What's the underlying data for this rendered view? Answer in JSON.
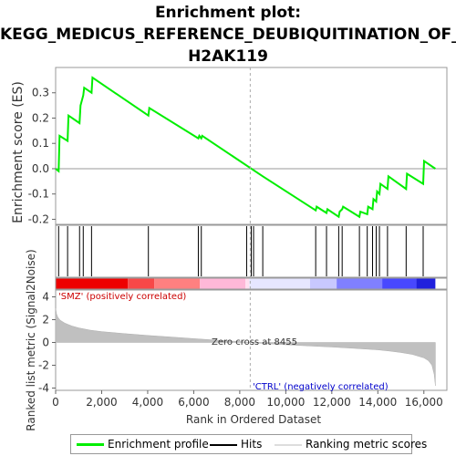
{
  "title_lines": [
    "Enrichment plot:",
    "KEGG_MEDICUS_REFERENCE_DEUBIQUITINATION_OF_",
    "H2AK119"
  ],
  "legend": {
    "items": [
      {
        "label": "Enrichment profile",
        "color": "#00ee00"
      },
      {
        "label": "Hits",
        "color": "#000000"
      },
      {
        "label": "Ranking metric scores",
        "color": "#cccccc"
      }
    ]
  },
  "chart_data": [
    {
      "type": "line",
      "ylabel": "Enrichment score (ES)",
      "xlim": [
        0,
        17000
      ],
      "ylim": [
        -0.22,
        0.4
      ],
      "yticks": [
        -0.2,
        -0.1,
        0.0,
        0.1,
        0.2,
        0.3
      ],
      "ytick_labels": [
        "-0.2",
        "-0.1",
        "0.0",
        "0.1",
        "0.2",
        "0.3"
      ],
      "series": [
        {
          "color": "#00ee00",
          "x": [
            0,
            130,
            170,
            520,
            560,
            1040,
            1080,
            1200,
            1240,
            1560,
            1600,
            4030,
            4070,
            6200,
            6240,
            6330,
            6370,
            9000,
            11300,
            11340,
            11770,
            11810,
            12300,
            12340,
            12450,
            12490,
            13200,
            13240,
            13540,
            13580,
            13770,
            13810,
            13930,
            13970,
            14070,
            14110,
            14420,
            14460,
            15230,
            15270,
            15970,
            16010,
            16500
          ],
          "y": [
            0.0,
            -0.01,
            0.13,
            0.11,
            0.21,
            0.18,
            0.25,
            0.29,
            0.32,
            0.3,
            0.36,
            0.21,
            0.24,
            0.12,
            0.13,
            0.12,
            0.13,
            -0.03,
            -0.165,
            -0.15,
            -0.175,
            -0.16,
            -0.19,
            -0.17,
            -0.16,
            -0.15,
            -0.19,
            -0.17,
            -0.18,
            -0.15,
            -0.16,
            -0.12,
            -0.13,
            -0.09,
            -0.1,
            -0.06,
            -0.08,
            -0.03,
            -0.08,
            -0.02,
            -0.06,
            0.03,
            0.0
          ]
        }
      ]
    },
    {
      "type": "scatter",
      "name": "Hits",
      "x": [
        130,
        520,
        1040,
        1200,
        1560,
        4030,
        6200,
        6330,
        8300,
        8500,
        8600,
        9000,
        11300,
        11770,
        12300,
        12450,
        13200,
        13540,
        13770,
        13930,
        14070,
        14420,
        15230,
        15970
      ]
    },
    {
      "type": "area",
      "ylabel": "Ranked list metric (Signal2Noise)",
      "xlabel": "Rank in Ordered Dataset",
      "xlim": [
        0,
        17000
      ],
      "ylim": [
        -4.2,
        4.6
      ],
      "yticks": [
        -4,
        -2,
        0,
        2,
        4
      ],
      "ytick_labels": [
        "-4",
        "-2",
        "0",
        "2",
        "4"
      ],
      "xticks": [
        0,
        2000,
        4000,
        6000,
        8000,
        10000,
        12000,
        14000,
        16000
      ],
      "xtick_labels": [
        "0",
        "2,000",
        "4,000",
        "6,000",
        "8,000",
        "10,000",
        "12,000",
        "14,000",
        "16,000"
      ],
      "x": [
        0,
        40,
        100,
        200,
        400,
        700,
        1000,
        1500,
        2000,
        3000,
        4000,
        5000,
        6000,
        7000,
        8000,
        8455,
        9000,
        10000,
        11000,
        12000,
        13000,
        14000,
        14500,
        15000,
        15500,
        16000,
        16200,
        16350,
        16450,
        16500
      ],
      "values": [
        3.0,
        2.5,
        2.2,
        1.95,
        1.7,
        1.45,
        1.28,
        1.08,
        0.95,
        0.78,
        0.62,
        0.48,
        0.34,
        0.2,
        0.08,
        0.0,
        -0.08,
        -0.2,
        -0.3,
        -0.4,
        -0.52,
        -0.65,
        -0.75,
        -0.88,
        -1.05,
        -1.35,
        -1.6,
        -2.0,
        -2.8,
        -3.8
      ],
      "annotations": {
        "pos": "'SMZ' (positively correlated)",
        "neg": "'CTRL' (negatively correlated)",
        "zero_cross": "Zero cross at 8455",
        "zero_cross_x": 8455
      }
    }
  ]
}
